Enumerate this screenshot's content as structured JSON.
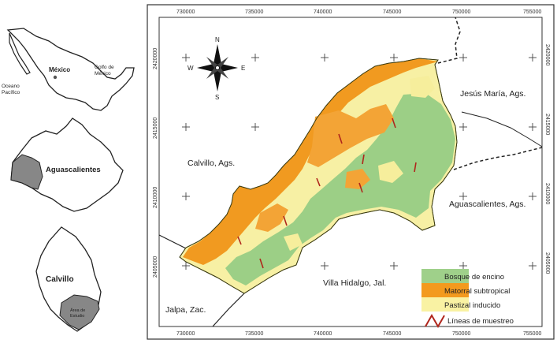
{
  "inset_mexico": {
    "country_label": "México",
    "ocean_label_line1": "Oceano",
    "ocean_label_line2": "Pacífico",
    "gulf_label_line1": "Golfo de",
    "gulf_label_line2": "México"
  },
  "inset_state": {
    "label": "Aguascalientes"
  },
  "inset_municipality": {
    "label": "Calvillo",
    "study_area_line1": "Área de",
    "study_area_line2": "Estudio"
  },
  "map": {
    "x_ticks": [
      "730000",
      "735000",
      "740000",
      "745000",
      "750000",
      "755000"
    ],
    "y_ticks": [
      "2420000",
      "2415000",
      "2410000",
      "2405000"
    ],
    "compass": {
      "n": "N",
      "s": "S",
      "e": "E",
      "w": "W"
    },
    "place_labels": {
      "jesus_maria": "Jesús María, Ags.",
      "calvillo": "Calvillo, Ags.",
      "aguascalientes": "Aguascalientes, Ags.",
      "villa_hidalgo": "Villa Hidalgo, Jal.",
      "jalpa": "Jalpa, Zac."
    }
  },
  "legend": {
    "items": [
      {
        "label": "Bosque de encino",
        "color": "#9fd08a"
      },
      {
        "label": "Matorral subtropical",
        "color": "#f39a1e"
      },
      {
        "label": "Pastizal inducido",
        "color": "#f9f2a3"
      }
    ],
    "line_item": {
      "label": "Líneas de muestreo",
      "color": "#b0261c"
    }
  }
}
